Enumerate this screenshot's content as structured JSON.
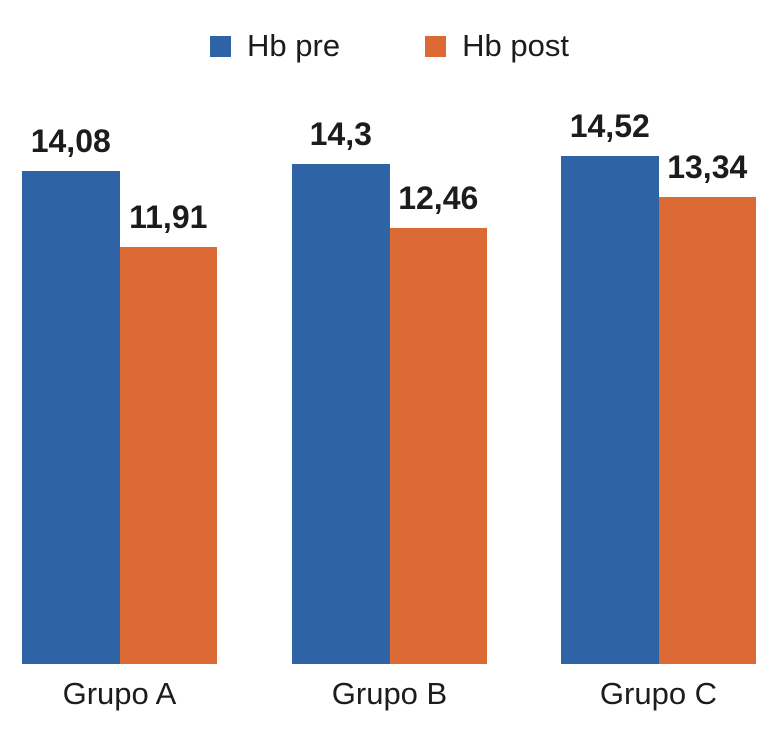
{
  "chart_data": {
    "type": "bar",
    "title": "",
    "categories": [
      "Grupo A",
      "Grupo B",
      "Grupo C"
    ],
    "series": [
      {
        "name": "Hb pre",
        "color": "#2e63a6",
        "values": [
          14.08,
          14.3,
          14.52
        ],
        "value_labels": [
          "14,08",
          "14,3",
          "14,52"
        ]
      },
      {
        "name": "Hb post",
        "color": "#db6a35",
        "values": [
          11.91,
          12.46,
          13.34
        ],
        "value_labels": [
          "11,91",
          "12,46",
          "13,34"
        ]
      }
    ],
    "xlabel": "",
    "ylabel": "",
    "ylim": [
      0,
      15.5
    ],
    "grid": false,
    "axes_visible": false,
    "legend_position": "top",
    "value_label_decimal_separator": ",",
    "text_color": "#1c1c1c",
    "background_color": "#ffffff"
  }
}
